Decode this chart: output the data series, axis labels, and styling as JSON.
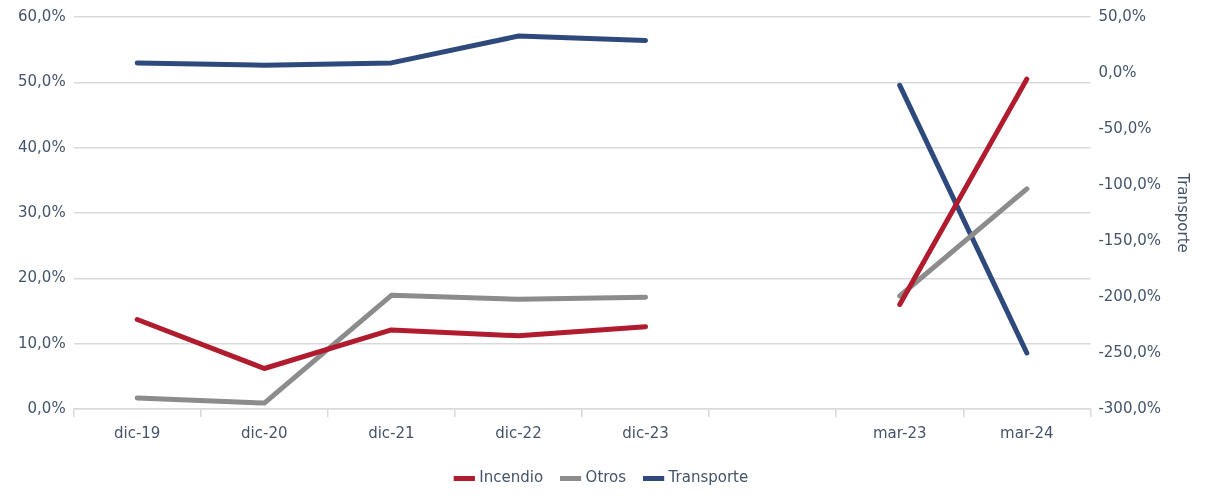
{
  "chart_data": {
    "type": "line",
    "categories": [
      "dic-19",
      "dic-20",
      "dic-21",
      "dic-22",
      "dic-23",
      null,
      "mar-23",
      "mar-24"
    ],
    "series": [
      {
        "name": "Incendio",
        "color": "#b01c2e",
        "values": [
          13.7,
          6.2,
          12.1,
          11.2,
          12.6,
          null,
          16.0,
          50.5
        ]
      },
      {
        "name": "Otros",
        "color": "#8c8c8c",
        "values": [
          1.7,
          0.9,
          17.4,
          16.8,
          17.1,
          null,
          17.3,
          33.7
        ]
      },
      {
        "name": "Transporte",
        "color": "#2e4a7d",
        "axis": "y2",
        "values": [
          9,
          7,
          9,
          33,
          29,
          null,
          -11,
          -250
        ]
      }
    ],
    "ylim": [
      0,
      60
    ],
    "yticks": [
      {
        "value": 0,
        "label": "0,0%"
      },
      {
        "value": 10,
        "label": "10,0%"
      },
      {
        "value": 20,
        "label": "20,0%"
      },
      {
        "value": 30,
        "label": "30,0%"
      },
      {
        "value": 40,
        "label": "40,0%"
      },
      {
        "value": 50,
        "label": "50,0%"
      },
      {
        "value": 60,
        "label": "60,0%"
      }
    ],
    "y2lim": [
      -300,
      50
    ],
    "y2ticks": [
      {
        "value": -300,
        "label": "-300,0%"
      },
      {
        "value": -250,
        "label": "-250,0%"
      },
      {
        "value": -200,
        "label": "-200,0%"
      },
      {
        "value": -150,
        "label": "-150,0%"
      },
      {
        "value": -100,
        "label": "-100,0%"
      },
      {
        "value": -50,
        "label": "-50,0%"
      },
      {
        "value": 0,
        "label": "0,0%"
      },
      {
        "value": 50,
        "label": "50,0%"
      }
    ],
    "y2label": "Transporte",
    "grid": "y",
    "legend": "bottom",
    "marker": "none",
    "line_style": "solid"
  }
}
